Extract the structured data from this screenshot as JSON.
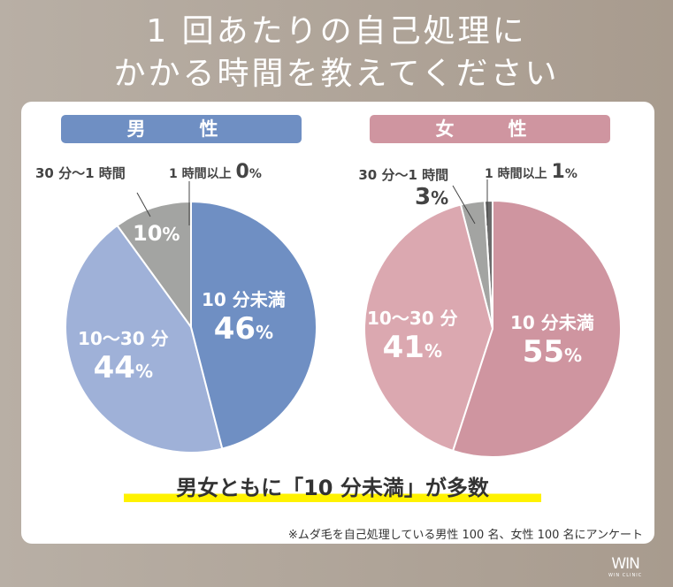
{
  "title": {
    "line1": "1 回あたりの自己処理に",
    "line2": "かかる時間を教えてください"
  },
  "chart_data": [
    {
      "type": "pie",
      "title": "男　性",
      "header_color": "#6f8fc3",
      "categories": [
        "10 分未満",
        "10〜30 分",
        "30 分〜1 時間",
        "1 時間以上"
      ],
      "values": [
        46,
        44,
        10,
        0
      ],
      "colors": [
        "#6f8fc3",
        "#9fb1d8",
        "#a3a4a2",
        "#6b6b6b"
      ]
    },
    {
      "type": "pie",
      "title": "女　性",
      "header_color": "#cf95a0",
      "categories": [
        "10 分未満",
        "10〜30 分",
        "30 分〜1 時間",
        "1 時間以上"
      ],
      "values": [
        55,
        41,
        3,
        1
      ],
      "colors": [
        "#cf95a0",
        "#dba8b0",
        "#a3a4a2",
        "#6b6b6b"
      ]
    }
  ],
  "labels": {
    "pct": "%",
    "m0": "46",
    "m1": "44",
    "m2": "10",
    "m3": "0",
    "f0": "55",
    "f1": "41",
    "f2": "3",
    "f3": "1"
  },
  "conclusion": "男女ともに「10 分未満」が多数",
  "note": "※ムダ毛を自己処理している男性 100 名、女性 100 名にアンケート",
  "logo": {
    "main": "WIN",
    "sub": "WIN CLINIC"
  }
}
